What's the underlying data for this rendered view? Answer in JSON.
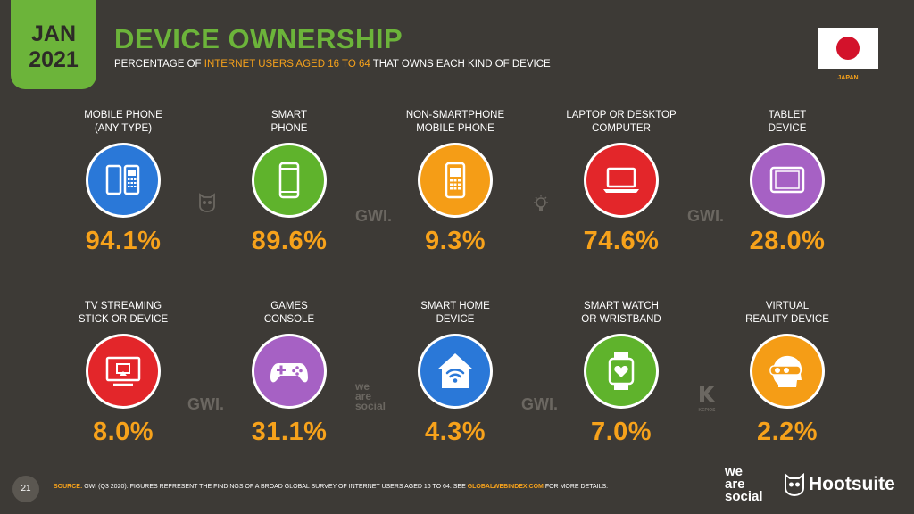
{
  "header": {
    "date_month": "JAN",
    "date_year": "2021",
    "title": "DEVICE OWNERSHIP",
    "subtitle_pre": "PERCENTAGE OF",
    "subtitle_highlight": "INTERNET USERS AGED 16 TO 64",
    "subtitle_post": "THAT OWNS EACH KIND OF DEVICE",
    "country": "JAPAN"
  },
  "devices": [
    {
      "label_line1": "MOBILE PHONE",
      "label_line2": "(ANY TYPE)",
      "value": "94.1%",
      "icon": "mobile-phones-icon",
      "color": "#2a78d8"
    },
    {
      "label_line1": "SMART",
      "label_line2": "PHONE",
      "value": "89.6%",
      "icon": "smartphone-icon",
      "color": "#5fb32c"
    },
    {
      "label_line1": "NON-SMARTPHONE",
      "label_line2": "MOBILE PHONE",
      "value": "9.3%",
      "icon": "feature-phone-icon",
      "color": "#f59d16"
    },
    {
      "label_line1": "LAPTOP OR DESKTOP",
      "label_line2": "COMPUTER",
      "value": "74.6%",
      "icon": "laptop-icon",
      "color": "#e3262a"
    },
    {
      "label_line1": "TABLET",
      "label_line2": "DEVICE",
      "value": "28.0%",
      "icon": "tablet-icon",
      "color": "#a661c4"
    },
    {
      "label_line1": "TV STREAMING",
      "label_line2": "STICK OR DEVICE",
      "value": "8.0%",
      "icon": "tv-streaming-icon",
      "color": "#e3262a"
    },
    {
      "label_line1": "GAMES",
      "label_line2": "CONSOLE",
      "value": "31.1%",
      "icon": "game-controller-icon",
      "color": "#a661c4"
    },
    {
      "label_line1": "SMART HOME",
      "label_line2": "DEVICE",
      "value": "4.3%",
      "icon": "smart-home-icon",
      "color": "#2a78d8"
    },
    {
      "label_line1": "SMART WATCH",
      "label_line2": "OR WRISTBAND",
      "value": "7.0%",
      "icon": "smartwatch-icon",
      "color": "#5fb32c"
    },
    {
      "label_line1": "VIRTUAL",
      "label_line2": "REALITY DEVICE",
      "value": "2.2%",
      "icon": "vr-headset-icon",
      "color": "#f59d16"
    }
  ],
  "watermarks": {
    "gwi": "GWI.",
    "was_line1": "we",
    "was_line2": "are",
    "was_line3": "social",
    "kepios": "KEPIOS"
  },
  "footer": {
    "page_number": "21",
    "source_label": "SOURCE:",
    "source_text": "GWI (Q3 2020). FIGURES REPRESENT THE FINDINGS OF A BROAD GLOBAL SURVEY OF INTERNET USERS AGED 16 TO 64. SEE",
    "source_link": "GLOBALWEBINDEX.COM",
    "source_end": "FOR MORE DETAILS.",
    "logo_was_line1": "we",
    "logo_was_line2": "are",
    "logo_was_line3": "social",
    "logo_hootsuite": "Hootsuite"
  },
  "colors": {
    "background": "#3d3a36",
    "accent_green": "#6cb43a",
    "accent_orange": "#f7a21b"
  }
}
